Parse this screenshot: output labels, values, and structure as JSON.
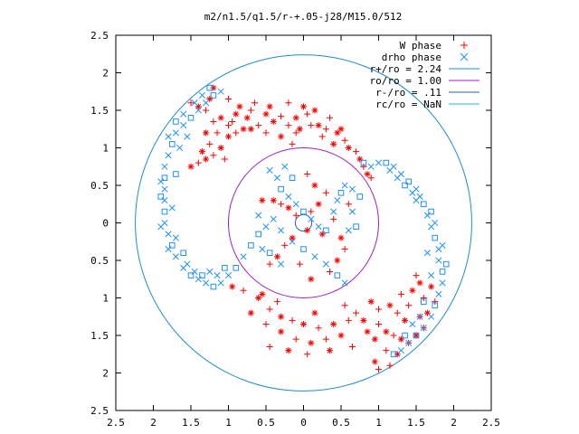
{
  "chart_data": {
    "type": "scatter",
    "title": "m2/n1.5/q1.5/r-+.05-j28/M15.0/512",
    "xlabel": "",
    "ylabel": "",
    "xlim": [
      -2.5,
      2.5
    ],
    "ylim": [
      -2.5,
      2.5
    ],
    "grid": false,
    "legend_position": "top-right",
    "x_ticks": [
      -2.5,
      -2,
      -1.5,
      -1,
      -0.5,
      0,
      0.5,
      1,
      1.5,
      2,
      2.5
    ],
    "y_ticks": [
      -2.5,
      -2,
      -1.5,
      -1,
      -0.5,
      0,
      0.5,
      1,
      1.5,
      2,
      2.5
    ],
    "x_tick_labels": [
      "2.5",
      "2",
      "1.5",
      "1",
      "0.5",
      "0",
      "0.5",
      "1",
      "1.5",
      "2",
      "2.5"
    ],
    "y_tick_labels": [
      "2.5",
      "2",
      "1.5",
      "1",
      "0.5",
      "0",
      "0.5",
      "1",
      "1.5",
      "2",
      "2.5"
    ],
    "series": [
      {
        "name": "W phase",
        "marker": "plus-star",
        "color": "#ff0000",
        "points": [
          [
            -1.2,
            1.8
          ],
          [
            -1.0,
            1.65
          ],
          [
            -0.85,
            1.55
          ],
          [
            -0.7,
            1.5
          ],
          [
            -0.5,
            1.45
          ],
          [
            -0.3,
            1.42
          ],
          [
            -0.1,
            1.4
          ],
          [
            0.05,
            1.45
          ],
          [
            0.15,
            1.5
          ],
          [
            0.1,
            1.3
          ],
          [
            -0.05,
            1.25
          ],
          [
            -0.2,
            1.3
          ],
          [
            -0.4,
            1.35
          ],
          [
            -0.6,
            1.3
          ],
          [
            -0.8,
            1.25
          ],
          [
            -1.0,
            1.3
          ],
          [
            -1.1,
            1.4
          ],
          [
            -1.2,
            1.35
          ],
          [
            -1.3,
            1.2
          ],
          [
            -1.25,
            1.05
          ],
          [
            -1.35,
            0.95
          ],
          [
            -1.4,
            0.8
          ],
          [
            -1.5,
            0.75
          ],
          [
            -1.2,
            0.9
          ],
          [
            -1.1,
            1.0
          ],
          [
            -1.3,
            1.5
          ],
          [
            -1.4,
            1.55
          ],
          [
            -1.5,
            1.6
          ],
          [
            -1.0,
            1.15
          ],
          [
            -0.9,
            1.2
          ],
          [
            -0.7,
            1.25
          ],
          [
            -0.5,
            1.2
          ],
          [
            -0.3,
            1.15
          ],
          [
            -0.1,
            1.2
          ],
          [
            0.2,
            1.3
          ],
          [
            0.3,
            1.25
          ],
          [
            0.45,
            1.2
          ],
          [
            0.55,
            1.1
          ],
          [
            0.6,
            1.0
          ],
          [
            0.7,
            0.95
          ],
          [
            0.75,
            0.85
          ],
          [
            0.8,
            0.75
          ],
          [
            0.85,
            0.65
          ],
          [
            0.9,
            0.6
          ],
          [
            0.5,
            1.25
          ],
          [
            0.35,
            1.4
          ],
          [
            0.0,
            1.55
          ],
          [
            -0.2,
            1.6
          ],
          [
            -0.45,
            1.55
          ],
          [
            -0.65,
            1.6
          ],
          [
            -0.9,
            1.45
          ],
          [
            -1.15,
            1.2
          ],
          [
            -1.25,
            1.65
          ],
          [
            -0.95,
            1.35
          ],
          [
            -0.75,
            1.4
          ],
          [
            -1.05,
            0.85
          ],
          [
            -1.3,
            0.85
          ],
          [
            -0.15,
            1.05
          ],
          [
            0.4,
            1.05
          ],
          [
            0.25,
            1.15
          ],
          [
            -0.95,
            -0.85
          ],
          [
            -0.8,
            -0.9
          ],
          [
            -0.6,
            -1.0
          ],
          [
            -0.45,
            -1.15
          ],
          [
            -0.3,
            -1.25
          ],
          [
            -0.15,
            -1.3
          ],
          [
            0.0,
            -1.35
          ],
          [
            0.2,
            -1.4
          ],
          [
            0.4,
            -1.35
          ],
          [
            0.6,
            -1.3
          ],
          [
            0.8,
            -1.3
          ],
          [
            1.0,
            -1.35
          ],
          [
            1.1,
            -1.45
          ],
          [
            1.2,
            -1.5
          ],
          [
            1.3,
            -1.55
          ],
          [
            1.4,
            -1.6
          ],
          [
            1.5,
            -1.5
          ],
          [
            1.6,
            -1.4
          ],
          [
            1.65,
            -1.2
          ],
          [
            1.6,
            -1.0
          ],
          [
            1.55,
            -0.8
          ],
          [
            1.5,
            -0.7
          ],
          [
            1.45,
            -0.9
          ],
          [
            1.4,
            -1.1
          ],
          [
            1.35,
            -1.3
          ],
          [
            1.25,
            -1.2
          ],
          [
            1.15,
            -1.1
          ],
          [
            1.0,
            -1.15
          ],
          [
            0.9,
            -1.05
          ],
          [
            0.7,
            -1.2
          ],
          [
            0.5,
            -1.5
          ],
          [
            0.3,
            -1.55
          ],
          [
            0.1,
            -1.6
          ],
          [
            -0.1,
            -1.55
          ],
          [
            -0.3,
            -1.45
          ],
          [
            -0.5,
            -1.35
          ],
          [
            -0.7,
            -1.2
          ],
          [
            -0.45,
            -1.65
          ],
          [
            -0.2,
            -1.7
          ],
          [
            0.05,
            -1.75
          ],
          [
            0.35,
            -1.7
          ],
          [
            0.65,
            -1.65
          ],
          [
            0.95,
            -1.55
          ],
          [
            1.1,
            -1.7
          ],
          [
            1.25,
            -1.75
          ],
          [
            1.15,
            -1.9
          ],
          [
            0.95,
            -1.85
          ],
          [
            1.0,
            -1.95
          ],
          [
            1.7,
            -0.85
          ],
          [
            1.75,
            -1.05
          ],
          [
            1.55,
            -1.25
          ],
          [
            1.3,
            -0.95
          ],
          [
            -0.55,
            -0.95
          ],
          [
            -0.35,
            -1.05
          ],
          [
            0.15,
            -1.2
          ],
          [
            0.55,
            -1.1
          ],
          [
            0.85,
            -1.45
          ],
          [
            0.3,
            0.4
          ],
          [
            0.2,
            0.25
          ],
          [
            0.1,
            0.15
          ],
          [
            0.05,
            -0.1
          ],
          [
            -0.1,
            0.1
          ],
          [
            -0.2,
            0.2
          ],
          [
            -0.3,
            0.25
          ],
          [
            -0.4,
            0.3
          ],
          [
            0.4,
            0.05
          ],
          [
            0.5,
            -0.2
          ],
          [
            0.55,
            -0.35
          ],
          [
            0.45,
            -0.5
          ],
          [
            0.35,
            -0.65
          ],
          [
            -0.15,
            -0.2
          ],
          [
            -0.25,
            -0.3
          ],
          [
            -0.35,
            -0.45
          ],
          [
            -0.45,
            -0.55
          ],
          [
            0.15,
            0.5
          ],
          [
            0.05,
            0.65
          ],
          [
            0.25,
            -0.15
          ],
          [
            0.6,
            0.25
          ],
          [
            -0.55,
            0.3
          ],
          [
            -0.05,
            -0.55
          ],
          [
            0.1,
            -0.75
          ]
        ]
      },
      {
        "name": "drho phase",
        "marker": "cross-square",
        "color": "#1e90ff",
        "points": [
          [
            -1.2,
            1.7
          ],
          [
            -1.3,
            1.6
          ],
          [
            -1.4,
            1.5
          ],
          [
            -1.5,
            1.4
          ],
          [
            -1.6,
            1.3
          ],
          [
            -1.7,
            1.2
          ],
          [
            -1.75,
            1.05
          ],
          [
            -1.8,
            0.9
          ],
          [
            -1.85,
            0.75
          ],
          [
            -1.85,
            0.6
          ],
          [
            -1.85,
            0.45
          ],
          [
            -1.85,
            0.3
          ],
          [
            -1.85,
            0.15
          ],
          [
            -1.85,
            0.0
          ],
          [
            -1.8,
            -0.15
          ],
          [
            -1.75,
            -0.3
          ],
          [
            -1.7,
            -0.45
          ],
          [
            -1.6,
            -0.6
          ],
          [
            -1.5,
            -0.7
          ],
          [
            -1.4,
            -0.75
          ],
          [
            -1.3,
            -0.8
          ],
          [
            -1.2,
            -0.85
          ],
          [
            -1.1,
            -0.8
          ],
          [
            -1.0,
            -0.7
          ],
          [
            -0.9,
            -0.6
          ],
          [
            -1.55,
            1.15
          ],
          [
            -1.65,
            1.0
          ],
          [
            -1.7,
            0.65
          ],
          [
            -1.75,
            0.2
          ],
          [
            -1.7,
            -0.2
          ],
          [
            -1.6,
            -0.4
          ],
          [
            -1.55,
            -0.55
          ],
          [
            -1.45,
            -0.65
          ],
          [
            -1.35,
            -0.7
          ],
          [
            -1.25,
            -0.65
          ],
          [
            -1.15,
            -0.7
          ],
          [
            -1.05,
            -0.6
          ],
          [
            -1.45,
            1.6
          ],
          [
            -1.35,
            1.7
          ],
          [
            -1.25,
            1.8
          ],
          [
            -1.1,
            1.75
          ],
          [
            -1.6,
            1.45
          ],
          [
            -1.7,
            1.35
          ],
          [
            -1.8,
            1.15
          ],
          [
            -1.9,
            0.55
          ],
          [
            -1.9,
            0.35
          ],
          [
            -1.9,
            -0.05
          ],
          [
            -1.8,
            -0.35
          ],
          [
            0.8,
            0.8
          ],
          [
            0.9,
            0.75
          ],
          [
            1.0,
            0.8
          ],
          [
            1.1,
            0.8
          ],
          [
            1.2,
            0.75
          ],
          [
            1.3,
            0.65
          ],
          [
            1.4,
            0.55
          ],
          [
            1.5,
            0.45
          ],
          [
            1.55,
            0.35
          ],
          [
            1.6,
            0.25
          ],
          [
            1.65,
            0.1
          ],
          [
            1.7,
            -0.05
          ],
          [
            1.75,
            -0.2
          ],
          [
            1.8,
            -0.35
          ],
          [
            1.8,
            -0.5
          ],
          [
            1.85,
            -0.65
          ],
          [
            1.85,
            -0.8
          ],
          [
            1.8,
            -0.95
          ],
          [
            1.75,
            -1.1
          ],
          [
            1.7,
            -1.25
          ],
          [
            1.6,
            -1.4
          ],
          [
            1.5,
            -1.5
          ],
          [
            1.4,
            -1.6
          ],
          [
            1.3,
            -1.7
          ],
          [
            1.2,
            -1.75
          ],
          [
            1.15,
            0.7
          ],
          [
            1.25,
            0.6
          ],
          [
            1.35,
            0.5
          ],
          [
            1.45,
            0.4
          ],
          [
            1.5,
            0.3
          ],
          [
            1.7,
            0.15
          ],
          [
            1.75,
            0.0
          ],
          [
            1.85,
            -0.3
          ],
          [
            1.9,
            -0.55
          ],
          [
            1.65,
            -0.4
          ],
          [
            1.7,
            -0.7
          ],
          [
            1.6,
            -1.05
          ],
          [
            1.55,
            -1.25
          ],
          [
            1.45,
            -1.35
          ],
          [
            1.35,
            -1.5
          ],
          [
            -0.45,
            0.7
          ],
          [
            -0.35,
            0.6
          ],
          [
            -0.3,
            0.45
          ],
          [
            -0.2,
            0.35
          ],
          [
            -0.1,
            0.25
          ],
          [
            0.0,
            0.15
          ],
          [
            0.1,
            0.05
          ],
          [
            0.2,
            -0.05
          ],
          [
            0.3,
            -0.1
          ],
          [
            0.4,
            0.15
          ],
          [
            0.45,
            0.3
          ],
          [
            0.5,
            0.4
          ],
          [
            0.55,
            0.5
          ],
          [
            0.65,
            0.45
          ],
          [
            0.75,
            0.35
          ],
          [
            -0.4,
            0.05
          ],
          [
            -0.5,
            -0.05
          ],
          [
            -0.6,
            -0.15
          ],
          [
            -0.3,
            -0.1
          ],
          [
            -0.15,
            -0.25
          ],
          [
            0.0,
            -0.35
          ],
          [
            0.15,
            -0.45
          ],
          [
            0.3,
            -0.55
          ],
          [
            0.45,
            -0.7
          ],
          [
            0.55,
            -0.8
          ],
          [
            -0.6,
            0.1
          ],
          [
            -0.7,
            -0.3
          ],
          [
            -0.8,
            -0.45
          ],
          [
            -0.55,
            -0.35
          ],
          [
            -0.45,
            -0.4
          ],
          [
            -0.3,
            -0.55
          ],
          [
            0.6,
            -0.1
          ],
          [
            0.7,
            -0.05
          ],
          [
            0.65,
            0.15
          ],
          [
            -0.25,
            0.75
          ],
          [
            -0.15,
            0.6
          ]
        ]
      }
    ],
    "circles": [
      {
        "name": "r+/ro = 2.24",
        "radius": 2.24,
        "color": "#1e8ccf"
      },
      {
        "name": "ro/ro = 1.00",
        "radius": 1.0,
        "color": "#a020c0"
      },
      {
        "name": "r-/ro = .11",
        "radius": 0.11,
        "color": "#2060c0"
      },
      {
        "name": "rc/ro = NaN",
        "radius": null,
        "color": "#20b8c8"
      }
    ]
  }
}
